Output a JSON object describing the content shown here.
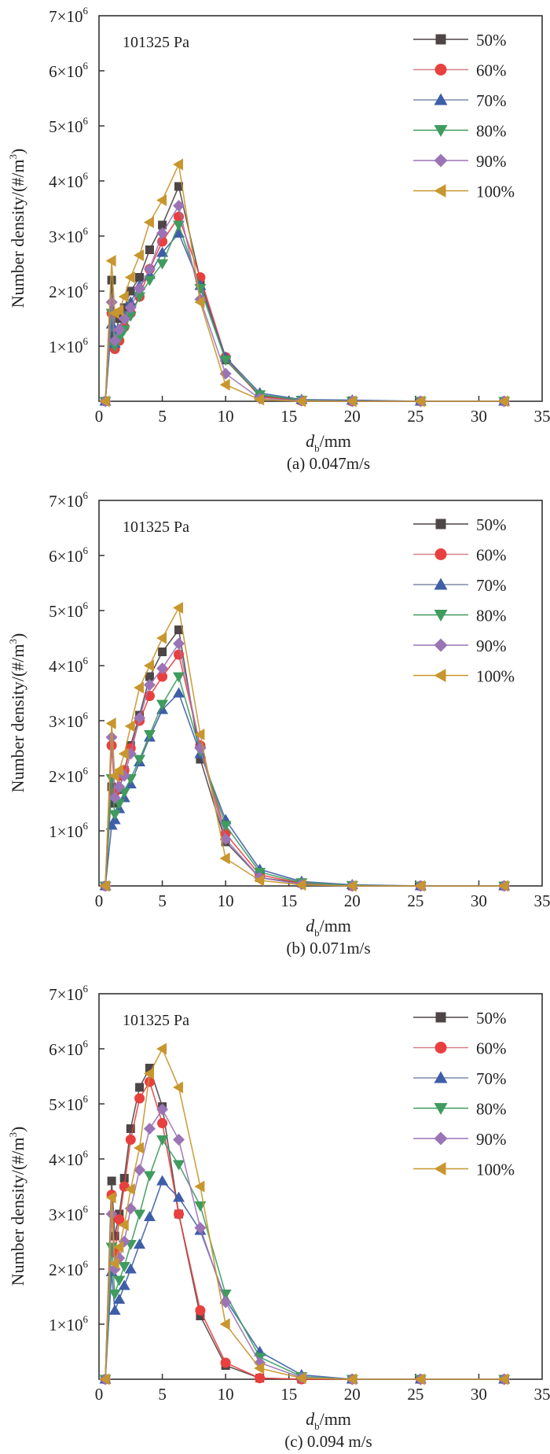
{
  "figure": {
    "ylabel": "Number density/(#/m",
    "ylabel_sup": "3",
    "ylabel_close": ")",
    "xlabel_italic": "d",
    "xlabel_sub": "b",
    "xlabel_rest": "/mm",
    "annotation": "101325 Pa",
    "legend": [
      "50%",
      "60%",
      "70%",
      "80%",
      "90%",
      "100%"
    ],
    "series_colors": [
      "#4e4646",
      "#e8403f",
      "#3f5ea8",
      "#3f9b5e",
      "#9b74b5",
      "#c8962e"
    ],
    "series_markers": [
      "square",
      "circle",
      "triangle-up",
      "triangle-down",
      "diamond",
      "triangle-left"
    ]
  },
  "chart_data": [
    {
      "type": "line",
      "title": "(a) 0.047m/s",
      "xlabel": "d_b/mm",
      "ylabel": "Number density/(#/m^3)",
      "annotation": "101325 Pa",
      "xlim": [
        0,
        35
      ],
      "ylim": [
        0,
        7000000
      ],
      "xticks": [
        0,
        5,
        10,
        15,
        20,
        25,
        30,
        35
      ],
      "yticks": [
        1,
        2,
        3,
        4,
        5,
        6,
        7
      ],
      "ytick_labels": [
        "1×10",
        "2×10",
        "3×10",
        "4×10",
        "5×10",
        "6×10",
        "7×10"
      ],
      "ytick_exp": "6",
      "grid": false,
      "legend_position": "top-right",
      "x": [
        0.5,
        1.0,
        1.25,
        1.6,
        2.0,
        2.5,
        3.2,
        4.0,
        5.0,
        6.3,
        8.0,
        10.0,
        12.7,
        16.0,
        20.0,
        25.4,
        32.0
      ],
      "series": [
        {
          "name": "50%",
          "values": [
            0,
            2200000,
            1200000,
            1500000,
            1700000,
            2000000,
            2250000,
            2750000,
            3200000,
            3900000,
            2200000,
            750000,
            100000,
            20000,
            10000,
            0,
            0
          ]
        },
        {
          "name": "60%",
          "values": [
            0,
            1600000,
            950000,
            1100000,
            1350000,
            1600000,
            1900000,
            2400000,
            2900000,
            3350000,
            2250000,
            800000,
            80000,
            10000,
            0,
            0,
            0
          ]
        },
        {
          "name": "70%",
          "values": [
            0,
            1400000,
            1050000,
            1300000,
            1550000,
            1800000,
            2100000,
            2300000,
            2700000,
            3050000,
            2100000,
            800000,
            150000,
            30000,
            20000,
            0,
            0
          ]
        },
        {
          "name": "80%",
          "values": [
            0,
            1600000,
            1000000,
            1150000,
            1300000,
            1550000,
            1900000,
            2200000,
            2500000,
            3200000,
            2050000,
            750000,
            120000,
            20000,
            0,
            0,
            0
          ]
        },
        {
          "name": "90%",
          "values": [
            0,
            1800000,
            1100000,
            1300000,
            1500000,
            1700000,
            2050000,
            2400000,
            3050000,
            3550000,
            1850000,
            500000,
            50000,
            10000,
            0,
            0,
            0
          ]
        },
        {
          "name": "100%",
          "values": [
            0,
            2550000,
            1600000,
            1650000,
            1900000,
            2250000,
            2650000,
            3250000,
            3650000,
            4300000,
            1800000,
            300000,
            30000,
            0,
            0,
            0,
            0
          ]
        }
      ]
    },
    {
      "type": "line",
      "title": "(b) 0.071m/s",
      "xlabel": "d_b/mm",
      "ylabel": "Number density/(#/m^3)",
      "annotation": "101325 Pa",
      "xlim": [
        0,
        35
      ],
      "ylim": [
        0,
        7000000
      ],
      "xticks": [
        0,
        5,
        10,
        15,
        20,
        25,
        30,
        35
      ],
      "yticks": [
        1,
        2,
        3,
        4,
        5,
        6,
        7
      ],
      "ytick_labels": [
        "1×10",
        "2×10",
        "3×10",
        "4×10",
        "5×10",
        "6×10",
        "7×10"
      ],
      "ytick_exp": "6",
      "grid": false,
      "legend_position": "top-right",
      "x": [
        0.5,
        1.0,
        1.25,
        1.6,
        2.0,
        2.5,
        3.2,
        4.0,
        5.0,
        6.3,
        8.0,
        10.0,
        12.7,
        16.0,
        20.0,
        25.4,
        32.0
      ],
      "series": [
        {
          "name": "50%",
          "values": [
            0,
            1800000,
            1500000,
            1750000,
            2100000,
            2550000,
            3100000,
            3800000,
            4250000,
            4650000,
            2300000,
            800000,
            150000,
            50000,
            0,
            0,
            0
          ]
        },
        {
          "name": "60%",
          "values": [
            0,
            2550000,
            1700000,
            2000000,
            2100000,
            2500000,
            3000000,
            3450000,
            3800000,
            4200000,
            2550000,
            950000,
            200000,
            50000,
            0,
            0,
            0
          ]
        },
        {
          "name": "70%",
          "values": [
            0,
            1100000,
            1200000,
            1400000,
            1600000,
            1850000,
            2250000,
            2700000,
            3200000,
            3500000,
            2400000,
            1200000,
            300000,
            80000,
            20000,
            0,
            0
          ]
        },
        {
          "name": "80%",
          "values": [
            0,
            1950000,
            1300000,
            1500000,
            1700000,
            1950000,
            2300000,
            2750000,
            3300000,
            3800000,
            2450000,
            1100000,
            250000,
            60000,
            10000,
            0,
            0
          ]
        },
        {
          "name": "90%",
          "values": [
            0,
            2700000,
            1600000,
            1800000,
            2000000,
            2400000,
            3050000,
            3650000,
            3950000,
            4400000,
            2500000,
            850000,
            150000,
            30000,
            0,
            0,
            0
          ]
        },
        {
          "name": "100%",
          "values": [
            0,
            2950000,
            2000000,
            2100000,
            2400000,
            2900000,
            3600000,
            4000000,
            4500000,
            5050000,
            2750000,
            500000,
            100000,
            20000,
            0,
            0,
            0
          ]
        }
      ]
    },
    {
      "type": "line",
      "title": "(c) 0.094 m/s",
      "xlabel": "d_b/mm",
      "ylabel": "Number density/(#/m^3)",
      "annotation": "101325 Pa",
      "xlim": [
        0,
        35
      ],
      "ylim": [
        0,
        7000000
      ],
      "xticks": [
        0,
        5,
        10,
        15,
        20,
        25,
        30,
        35
      ],
      "yticks": [
        1,
        2,
        3,
        4,
        5,
        6,
        7
      ],
      "ytick_labels": [
        "1×10",
        "2×10",
        "3×10",
        "4×10",
        "5×10",
        "6×10",
        "7×10"
      ],
      "ytick_exp": "6",
      "grid": false,
      "legend_position": "top-right",
      "x": [
        0.5,
        1.0,
        1.25,
        1.6,
        2.0,
        2.5,
        3.2,
        4.0,
        5.0,
        6.3,
        8.0,
        10.0,
        12.7,
        16.0,
        20.0,
        25.4,
        32.0
      ],
      "series": [
        {
          "name": "50%",
          "values": [
            0,
            3600000,
            2600000,
            3000000,
            3650000,
            4550000,
            5300000,
            5650000,
            4950000,
            3000000,
            1150000,
            250000,
            20000,
            0,
            0,
            0,
            0
          ]
        },
        {
          "name": "60%",
          "values": [
            0,
            3350000,
            2300000,
            2900000,
            3500000,
            4350000,
            5100000,
            5400000,
            4650000,
            3000000,
            1250000,
            300000,
            20000,
            0,
            0,
            0,
            0
          ]
        },
        {
          "name": "70%",
          "values": [
            0,
            1950000,
            1250000,
            1450000,
            1700000,
            2000000,
            2450000,
            2950000,
            3600000,
            3300000,
            2700000,
            1450000,
            500000,
            80000,
            0,
            0,
            0
          ]
        },
        {
          "name": "80%",
          "values": [
            0,
            2400000,
            1550000,
            1800000,
            2050000,
            2450000,
            3000000,
            3700000,
            4350000,
            3900000,
            3150000,
            1550000,
            400000,
            50000,
            0,
            0,
            0
          ]
        },
        {
          "name": "90%",
          "values": [
            0,
            3000000,
            2000000,
            2200000,
            2500000,
            3100000,
            3800000,
            4550000,
            4900000,
            4350000,
            2750000,
            1400000,
            300000,
            30000,
            0,
            0,
            0
          ]
        },
        {
          "name": "100%",
          "values": [
            0,
            3300000,
            2100000,
            2400000,
            2800000,
            3450000,
            4200000,
            5550000,
            6000000,
            5300000,
            3500000,
            1000000,
            200000,
            20000,
            0,
            0,
            0
          ]
        }
      ]
    }
  ]
}
